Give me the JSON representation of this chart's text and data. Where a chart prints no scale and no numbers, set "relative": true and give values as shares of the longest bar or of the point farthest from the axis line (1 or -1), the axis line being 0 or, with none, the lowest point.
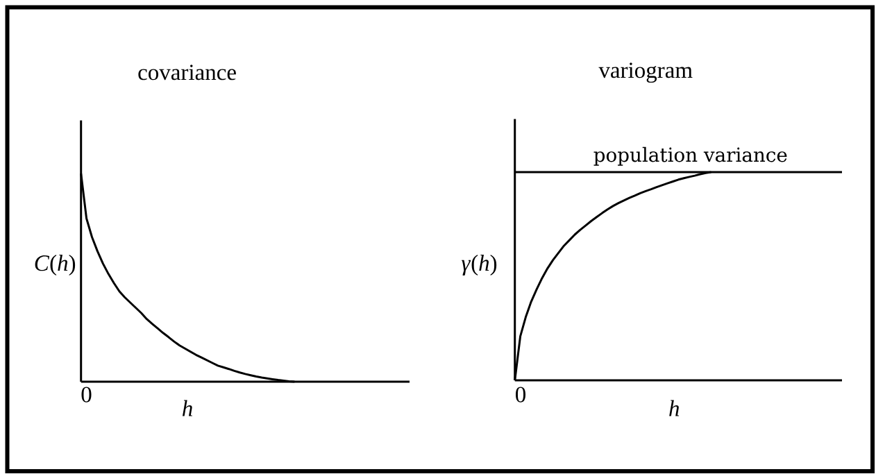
{
  "chart_data": [
    {
      "type": "line",
      "title": "covariance",
      "xlabel": "h",
      "ylabel": "*C*(*h*)",
      "relative": true,
      "annotations": [
        "0"
      ],
      "categories": [
        null,
        null,
        null,
        null,
        null,
        null,
        null,
        null,
        null,
        null,
        null,
        null,
        null,
        null,
        null,
        null,
        null,
        null,
        null,
        null,
        null,
        null,
        null,
        null,
        null,
        null,
        null,
        null,
        null,
        null,
        null,
        null,
        null,
        null,
        null,
        null,
        null,
        null,
        null,
        null,
        null,
        null,
        null,
        null,
        null,
        null,
        null,
        null,
        null,
        null,
        null,
        null,
        null,
        null,
        null,
        null,
        null,
        null,
        null,
        null,
        null
      ],
      "series": [
        {
          "color": "#000000",
          "values": [
            1.0,
            0.784,
            0.695,
            0.627,
            0.568,
            0.518,
            0.474,
            0.434,
            0.405,
            0.38,
            0.355,
            0.33,
            0.301,
            0.278,
            0.256,
            0.234,
            0.214,
            0.193,
            0.174,
            0.159,
            0.144,
            0.129,
            0.116,
            0.103,
            0.09,
            0.077,
            0.069,
            0.061,
            0.052,
            0.044,
            0.037,
            0.031,
            0.025,
            0.02,
            0.016,
            0.012,
            0.008,
            0.005,
            0.002,
            0.0,
            null,
            null,
            null,
            null,
            null,
            null,
            null,
            null,
            null,
            null,
            null,
            null,
            null,
            null,
            null,
            null,
            null,
            null,
            null,
            null,
            null
          ]
        }
      ]
    },
    {
      "type": "line",
      "title": "variogram",
      "xlabel": "h",
      "ylabel": "*γ*(*h*)",
      "relative": true,
      "annotations": [
        "0"
      ],
      "categories": [
        null,
        null,
        null,
        null,
        null,
        null,
        null,
        null,
        null,
        null,
        null,
        null,
        null,
        null,
        null,
        null,
        null,
        null,
        null,
        null,
        null,
        null,
        null,
        null,
        null,
        null,
        null,
        null,
        null,
        null,
        null,
        null,
        null,
        null,
        null,
        null,
        null,
        null,
        null,
        null,
        null,
        null,
        null,
        null,
        null,
        null,
        null,
        null,
        null,
        null,
        null,
        null,
        null,
        null,
        null,
        null,
        null,
        null,
        null,
        null,
        null
      ],
      "series": [
        {
          "color": "#000000",
          "values": [
            0.0,
            0.211,
            0.304,
            0.378,
            0.437,
            0.491,
            0.538,
            0.578,
            0.612,
            0.646,
            0.673,
            0.7,
            0.723,
            0.744,
            0.765,
            0.784,
            0.803,
            0.821,
            0.837,
            0.851,
            0.864,
            0.876,
            0.887,
            0.899,
            0.909,
            0.918,
            0.928,
            0.937,
            0.946,
            0.955,
            0.964,
            0.971,
            0.977,
            0.983,
            0.99,
            0.996,
            1.0,
            null,
            null,
            null,
            null,
            null,
            null,
            null,
            null,
            null,
            null,
            null,
            null,
            null,
            null,
            null,
            null,
            null,
            null,
            null,
            null,
            null,
            null,
            null,
            null
          ]
        }
      ],
      "ref_lines": [
        {
          "axis": "y",
          "value": 1,
          "label": "population variance",
          "color": "#000000"
        }
      ]
    }
  ]
}
